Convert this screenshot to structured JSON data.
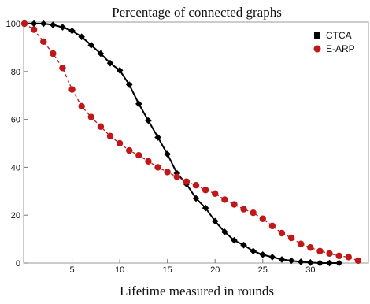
{
  "chart_data": {
    "type": "line",
    "title": "Percentage of connected graphs",
    "xlabel": "Lifetime measured in rounds",
    "ylabel": "",
    "xlim": [
      0,
      36
    ],
    "ylim": [
      0,
      100
    ],
    "x_ticks": [
      5,
      10,
      15,
      20,
      25,
      30
    ],
    "y_ticks": [
      0,
      20,
      40,
      60,
      80,
      100
    ],
    "grid": false,
    "legend_position": "top-right",
    "series": [
      {
        "name": "CTCA",
        "color": "#000000",
        "marker": "diamond",
        "line_style": "solid",
        "x": [
          0,
          1,
          2,
          3,
          4,
          5,
          6,
          7,
          8,
          9,
          10,
          11,
          12,
          13,
          14,
          15,
          16,
          17,
          18,
          19,
          20,
          21,
          22,
          23,
          24,
          25,
          26,
          27,
          28,
          29,
          30,
          31,
          32,
          33
        ],
        "y": [
          100,
          100,
          100,
          99.5,
          98.5,
          97,
          94.5,
          91,
          87.5,
          83.5,
          80.5,
          74.5,
          66.5,
          59.5,
          52.5,
          45.5,
          37.5,
          33,
          27,
          23,
          17.5,
          13,
          9.5,
          7.5,
          5,
          3.5,
          2.5,
          1.5,
          1,
          0.5,
          0.2,
          0,
          0,
          0
        ]
      },
      {
        "name": "E-ARP",
        "color": "#c01818",
        "marker": "circle",
        "line_style": "dashed",
        "x": [
          0,
          1,
          2,
          3,
          4,
          5,
          6,
          7,
          8,
          9,
          10,
          11,
          12,
          13,
          14,
          15,
          16,
          17,
          18,
          19,
          20,
          21,
          22,
          23,
          24,
          25,
          26,
          27,
          28,
          29,
          30,
          31,
          32,
          33,
          34,
          35
        ],
        "y": [
          100,
          97.5,
          92.5,
          87.5,
          81.5,
          72.5,
          65.5,
          61,
          57,
          53,
          50,
          47,
          45,
          42.5,
          40,
          38,
          36,
          34,
          32.5,
          30.5,
          29,
          26.5,
          24.5,
          22.5,
          21,
          18.5,
          15.5,
          12.5,
          10.5,
          8,
          6.5,
          5,
          4,
          3,
          2.5,
          1
        ]
      }
    ]
  }
}
